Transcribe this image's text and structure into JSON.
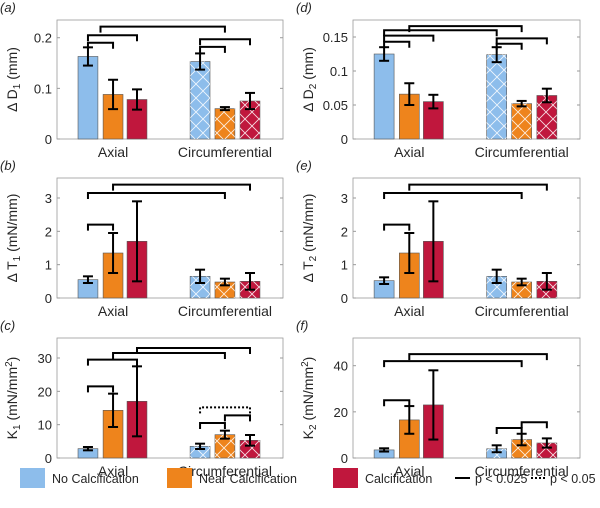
{
  "chart_data": [
    {
      "type": "bar",
      "panel_label": "(a)",
      "categories": [
        "Axial",
        "Circumferential"
      ],
      "ylabel_parts": [
        {
          "t": "Δ D",
          "s": ""
        },
        {
          "t": "1",
          "s": "sub"
        },
        {
          "t": " (mm)",
          "s": ""
        }
      ],
      "ylim": [
        0,
        0.235
      ],
      "yticks": [
        0,
        0.1,
        0.2
      ],
      "ytick_labels": [
        "0",
        "0.1",
        "0.2"
      ],
      "series": [
        {
          "name": "No Calcification",
          "values": [
            0.163,
            0.153
          ],
          "errors": [
            0.018,
            0.016
          ]
        },
        {
          "name": "Near Calcification",
          "values": [
            0.088,
            0.06
          ],
          "errors": [
            0.029,
            0.003
          ]
        },
        {
          "name": "Calcification",
          "values": [
            0.078,
            0.075
          ],
          "errors": [
            0.02,
            0.016
          ]
        }
      ],
      "brackets": [
        [
          0,
          1,
          0.19,
          "solid"
        ],
        [
          0,
          2,
          0.205,
          "solid"
        ],
        [
          0.5,
          4,
          0.222,
          "solid"
        ],
        [
          3,
          4,
          0.182,
          "solid"
        ],
        [
          3,
          5,
          0.197,
          "solid"
        ]
      ]
    },
    {
      "type": "bar",
      "panel_label": "(b)",
      "categories": [
        "Axial",
        "Circumferential"
      ],
      "ylabel_parts": [
        {
          "t": "Δ T",
          "s": ""
        },
        {
          "t": "1",
          "s": "sub"
        },
        {
          "t": " (mN/mm)",
          "s": ""
        }
      ],
      "ylim": [
        0,
        3.6
      ],
      "yticks": [
        0,
        1,
        2,
        3
      ],
      "ytick_labels": [
        "0",
        "1",
        "2",
        "3"
      ],
      "series": [
        {
          "name": "No Calcification",
          "values": [
            0.55,
            0.65
          ],
          "errors": [
            0.1,
            0.2
          ]
        },
        {
          "name": "Near Calcification",
          "values": [
            1.35,
            0.48
          ],
          "errors": [
            0.6,
            0.1
          ]
        },
        {
          "name": "Calcification",
          "values": [
            1.7,
            0.5
          ],
          "errors": [
            1.2,
            0.25
          ]
        }
      ],
      "brackets": [
        [
          0,
          1,
          2.2,
          "solid"
        ],
        [
          0,
          4,
          3.15,
          "solid"
        ],
        [
          1,
          5,
          3.4,
          "solid"
        ]
      ]
    },
    {
      "type": "bar",
      "panel_label": "(c)",
      "categories": [
        "Axial",
        "Circumferential"
      ],
      "ylabel_parts": [
        {
          "t": "K",
          "s": ""
        },
        {
          "t": "1",
          "s": "sub"
        },
        {
          "t": " (mN/mm",
          "s": ""
        },
        {
          "t": "2",
          "s": "sup"
        },
        {
          "t": ")",
          "s": ""
        }
      ],
      "ylim": [
        0,
        36
      ],
      "yticks": [
        0,
        10,
        20,
        30
      ],
      "ytick_labels": [
        "0",
        "10",
        "20",
        "30"
      ],
      "series": [
        {
          "name": "No Calcification",
          "values": [
            2.8,
            3.5
          ],
          "errors": [
            0.5,
            0.8
          ]
        },
        {
          "name": "Near Calcification",
          "values": [
            14.3,
            7.0
          ],
          "errors": [
            5.0,
            1.2
          ]
        },
        {
          "name": "Calcification",
          "values": [
            17.0,
            5.3
          ],
          "errors": [
            10.5,
            1.6
          ]
        }
      ],
      "brackets": [
        [
          0,
          1,
          21.5,
          "solid"
        ],
        [
          0,
          2,
          29.5,
          "solid"
        ],
        [
          1,
          4,
          31.5,
          "solid"
        ],
        [
          2,
          5,
          33,
          "solid"
        ],
        [
          3,
          4,
          10.5,
          "solid"
        ],
        [
          4,
          5,
          12.8,
          "solid"
        ],
        [
          3,
          5,
          15.2,
          "dotted"
        ]
      ]
    },
    {
      "type": "bar",
      "panel_label": "(d)",
      "categories": [
        "Axial",
        "Circumferential"
      ],
      "ylabel_parts": [
        {
          "t": "Δ D",
          "s": ""
        },
        {
          "t": "2",
          "s": "sub"
        },
        {
          "t": " (mm)",
          "s": ""
        }
      ],
      "ylim": [
        0,
        0.175
      ],
      "yticks": [
        0,
        0.05,
        0.1,
        0.15
      ],
      "ytick_labels": [
        "0",
        "0.05",
        "0.1",
        "0.15"
      ],
      "series": [
        {
          "name": "No Calcification",
          "values": [
            0.125,
            0.124
          ],
          "errors": [
            0.01,
            0.011
          ]
        },
        {
          "name": "Near Calcification",
          "values": [
            0.066,
            0.052
          ],
          "errors": [
            0.016,
            0.004
          ]
        },
        {
          "name": "Calcification",
          "values": [
            0.055,
            0.064
          ],
          "errors": [
            0.01,
            0.01
          ]
        }
      ],
      "brackets": [
        [
          0,
          1,
          0.143,
          "solid"
        ],
        [
          0,
          2,
          0.152,
          "solid"
        ],
        [
          0,
          3,
          0.16,
          "solid"
        ],
        [
          1,
          4,
          0.166,
          "solid"
        ],
        [
          3,
          4,
          0.14,
          "solid"
        ],
        [
          3,
          5,
          0.148,
          "solid"
        ]
      ]
    },
    {
      "type": "bar",
      "panel_label": "(e)",
      "categories": [
        "Axial",
        "Circumferential"
      ],
      "ylabel_parts": [
        {
          "t": "Δ T",
          "s": ""
        },
        {
          "t": "2",
          "s": "sub"
        },
        {
          "t": " (mN/mm)",
          "s": ""
        }
      ],
      "ylim": [
        0,
        3.6
      ],
      "yticks": [
        0,
        1,
        2,
        3
      ],
      "ytick_labels": [
        "0",
        "1",
        "2",
        "3"
      ],
      "series": [
        {
          "name": "No Calcification",
          "values": [
            0.52,
            0.65
          ],
          "errors": [
            0.1,
            0.2
          ]
        },
        {
          "name": "Near Calcification",
          "values": [
            1.35,
            0.48
          ],
          "errors": [
            0.6,
            0.1
          ]
        },
        {
          "name": "Calcification",
          "values": [
            1.7,
            0.5
          ],
          "errors": [
            1.2,
            0.25
          ]
        }
      ],
      "brackets": [
        [
          0,
          1,
          2.2,
          "solid"
        ],
        [
          0,
          4,
          3.15,
          "solid"
        ],
        [
          1,
          5,
          3.4,
          "solid"
        ]
      ]
    },
    {
      "type": "bar",
      "panel_label": "(f)",
      "categories": [
        "Axial",
        "Circumferential"
      ],
      "ylabel_parts": [
        {
          "t": "K",
          "s": ""
        },
        {
          "t": "2",
          "s": "sub"
        },
        {
          "t": " (mN/mm",
          "s": ""
        },
        {
          "t": "2",
          "s": "sup"
        },
        {
          "t": ")",
          "s": ""
        }
      ],
      "ylim": [
        0,
        52
      ],
      "yticks": [
        0,
        20,
        40
      ],
      "ytick_labels": [
        "0",
        "20",
        "40"
      ],
      "series": [
        {
          "name": "No Calcification",
          "values": [
            3.5,
            4.0
          ],
          "errors": [
            0.7,
            1.5
          ]
        },
        {
          "name": "Near Calcification",
          "values": [
            16.5,
            8.0
          ],
          "errors": [
            6.0,
            2.5
          ]
        },
        {
          "name": "Calcification",
          "values": [
            23.0,
            6.5
          ],
          "errors": [
            15.0,
            2.0
          ]
        }
      ],
      "brackets": [
        [
          0,
          1,
          25,
          "solid"
        ],
        [
          0,
          4,
          42,
          "solid"
        ],
        [
          1,
          5,
          45,
          "solid"
        ],
        [
          3,
          4,
          13,
          "solid"
        ],
        [
          4,
          5,
          15.5,
          "solid"
        ]
      ]
    }
  ],
  "legend": {
    "items": [
      {
        "label": "No Calcification",
        "color": "#8DBDEB"
      },
      {
        "label": "Near Calcification",
        "color": "#EE841C"
      },
      {
        "label": "Calcification",
        "color": "#C0173D"
      }
    ],
    "solid_label": "p < 0.025",
    "dotted_label": "p < 0.05"
  },
  "colors": {
    "bars": [
      "#8DBDEB",
      "#EE841C",
      "#C0173D"
    ],
    "axis": "#262626"
  }
}
